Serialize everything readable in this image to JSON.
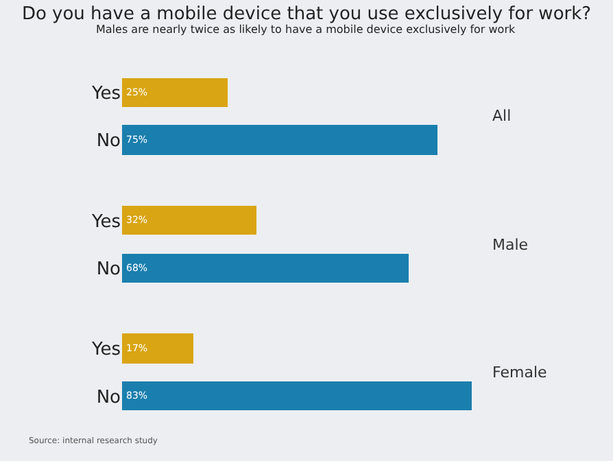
{
  "chart_data": {
    "type": "bar",
    "orientation": "horizontal",
    "title": "Do you have a mobile device that you use exclusively for work?",
    "subtitle": "Males are nearly twice as likely to have a mobile device exclusively for work",
    "categories": [
      "Yes",
      "No",
      "Yes",
      "No",
      "Yes",
      "No"
    ],
    "values": [
      25,
      75,
      32,
      68,
      17,
      83
    ],
    "value_labels": [
      "25%",
      "75%",
      "32%",
      "68%",
      "17%",
      "83%"
    ],
    "colors": [
      "#d9a514",
      "#1a7fae",
      "#d9a514",
      "#1a7fae",
      "#d9a514",
      "#1a7fae"
    ],
    "annotations": [
      "All",
      "Male",
      "Female",
      "Source: internal research study"
    ],
    "legend": false,
    "grid": false
  }
}
